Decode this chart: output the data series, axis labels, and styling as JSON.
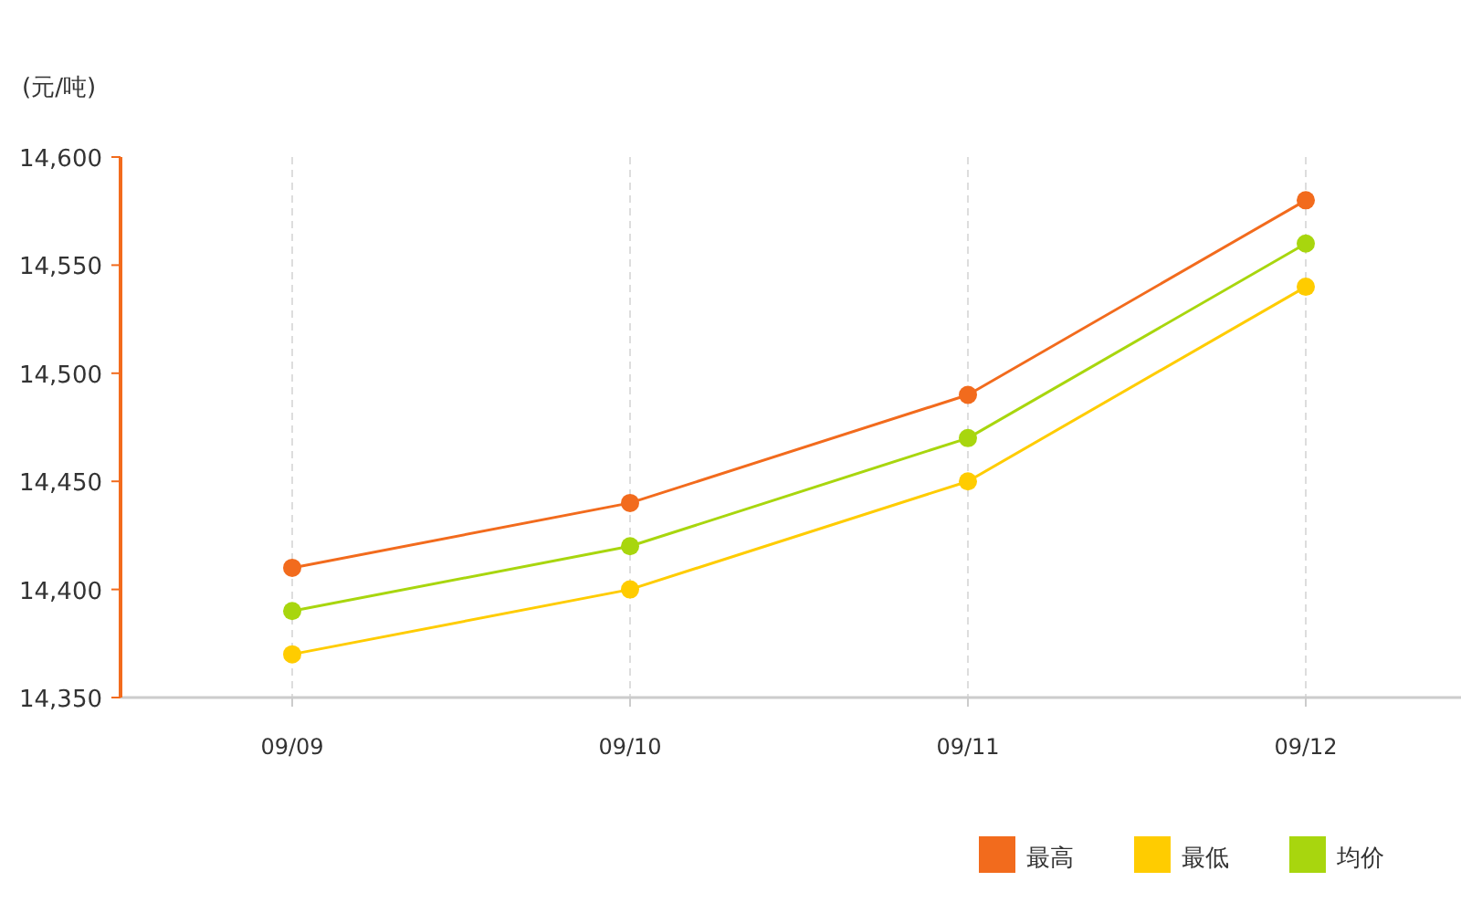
{
  "chart_data": {
    "type": "line",
    "ylabel": "(元/吨)",
    "categories": [
      "09/09",
      "09/10",
      "09/11",
      "09/12"
    ],
    "series": [
      {
        "name": "最高",
        "color": "#f26b1d",
        "values": [
          14410,
          14440,
          14490,
          14580
        ]
      },
      {
        "name": "最低",
        "color": "#ffcc00",
        "values": [
          14370,
          14400,
          14450,
          14540
        ]
      },
      {
        "name": "均价",
        "color": "#a8d60e",
        "values": [
          14390,
          14420,
          14470,
          14560
        ]
      }
    ],
    "ylim": [
      14350,
      14600
    ],
    "yticks": [
      {
        "value": 14350,
        "label": "14,350"
      },
      {
        "value": 14400,
        "label": "14,400"
      },
      {
        "value": 14450,
        "label": "14,450"
      },
      {
        "value": 14500,
        "label": "14,500"
      },
      {
        "value": 14550,
        "label": "14,550"
      },
      {
        "value": 14600,
        "label": "14,600"
      }
    ],
    "grid": "x",
    "legend": "bottom",
    "marker": "circle",
    "line_style": "solid"
  }
}
